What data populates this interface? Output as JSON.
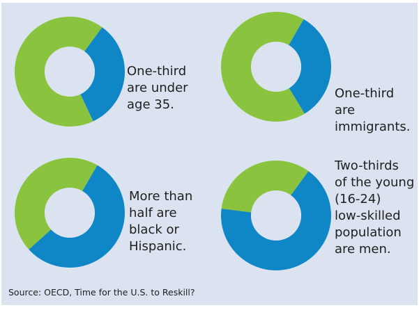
{
  "colors": {
    "background": "#dae3ef",
    "blue": "#0f86c6",
    "green": "#8ac43f"
  },
  "source": "Source: OECD, Time for the U.S. to Reskill?",
  "chart_data": [
    {
      "type": "pie",
      "title": "",
      "caption": "One-third\nare under\nage 35.",
      "slices": [
        {
          "color": "blue",
          "value": 0.33
        },
        {
          "color": "green",
          "value": 0.67
        }
      ],
      "start_angle": 36
    },
    {
      "type": "pie",
      "title": "",
      "caption": "One-third are\nimmigrants.",
      "slices": [
        {
          "color": "blue",
          "value": 0.33
        },
        {
          "color": "green",
          "value": 0.67
        }
      ],
      "start_angle": 30
    },
    {
      "type": "pie",
      "title": "",
      "caption": "More than\nhalf are\nblack or\nHispanic.",
      "slices": [
        {
          "color": "blue",
          "value": 0.55
        },
        {
          "color": "green",
          "value": 0.45
        }
      ],
      "start_angle": 30
    },
    {
      "type": "pie",
      "title": "",
      "caption": "Two-thirds\nof the young\n(16-24)\nlow-skilled\npopulation\nare men.",
      "slices": [
        {
          "color": "blue",
          "value": 0.67
        },
        {
          "color": "green",
          "value": 0.33
        }
      ],
      "start_angle": 36
    }
  ]
}
